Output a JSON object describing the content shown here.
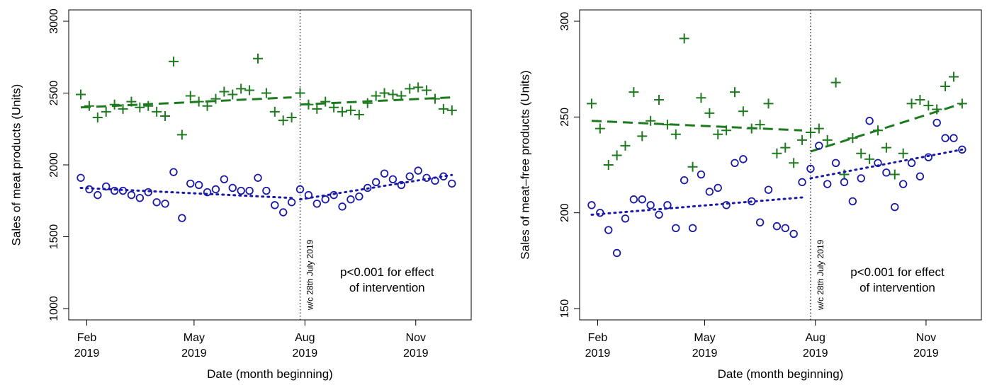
{
  "chart_data": [
    {
      "type": "scatter",
      "ylabel": "Sales of meat products (Units)",
      "xlabel": "Date (month beginning)",
      "ylim": [
        1000,
        3000
      ],
      "yticks": [
        "1000",
        "1500",
        "2000",
        "2500",
        "3000"
      ],
      "xticks": [
        {
          "date": "2019-02-01",
          "month": "Feb",
          "year": "2019"
        },
        {
          "date": "2019-05-01",
          "month": "May",
          "year": "2019"
        },
        {
          "date": "2019-08-01",
          "month": "Aug",
          "year": "2019"
        },
        {
          "date": "2019-11-01",
          "month": "Nov",
          "year": "2019"
        }
      ],
      "xlim": [
        "2019-01-17",
        "2019-12-17"
      ],
      "intervention": {
        "date": "2019-07-28",
        "label": "w/c 28th July 2019"
      },
      "annotation": [
        "p<0.001 for effect",
        "of intervention"
      ],
      "series": [
        {
          "marker": "plus",
          "color": "#1e7a1e",
          "points": [
            [
              "2019-01-27",
              2490
            ],
            [
              "2019-02-03",
              2410
            ],
            [
              "2019-02-10",
              2330
            ],
            [
              "2019-02-17",
              2370
            ],
            [
              "2019-02-24",
              2420
            ],
            [
              "2019-03-03",
              2390
            ],
            [
              "2019-03-10",
              2440
            ],
            [
              "2019-03-17",
              2400
            ],
            [
              "2019-03-24",
              2410
            ],
            [
              "2019-03-31",
              2370
            ],
            [
              "2019-04-07",
              2340
            ],
            [
              "2019-04-14",
              2720
            ],
            [
              "2019-04-21",
              2210
            ],
            [
              "2019-04-28",
              2480
            ],
            [
              "2019-05-05",
              2440
            ],
            [
              "2019-05-12",
              2410
            ],
            [
              "2019-05-19",
              2460
            ],
            [
              "2019-05-26",
              2510
            ],
            [
              "2019-06-02",
              2490
            ],
            [
              "2019-06-09",
              2530
            ],
            [
              "2019-06-16",
              2520
            ],
            [
              "2019-06-23",
              2740
            ],
            [
              "2019-06-30",
              2500
            ],
            [
              "2019-07-07",
              2370
            ],
            [
              "2019-07-14",
              2310
            ],
            [
              "2019-07-21",
              2330
            ],
            [
              "2019-07-28",
              2500
            ],
            [
              "2019-08-04",
              2420
            ],
            [
              "2019-08-11",
              2390
            ],
            [
              "2019-08-18",
              2440
            ],
            [
              "2019-08-25",
              2400
            ],
            [
              "2019-09-01",
              2370
            ],
            [
              "2019-09-08",
              2380
            ],
            [
              "2019-09-15",
              2350
            ],
            [
              "2019-09-22",
              2430
            ],
            [
              "2019-09-29",
              2480
            ],
            [
              "2019-10-06",
              2500
            ],
            [
              "2019-10-13",
              2490
            ],
            [
              "2019-10-20",
              2480
            ],
            [
              "2019-10-27",
              2530
            ],
            [
              "2019-11-03",
              2540
            ],
            [
              "2019-11-10",
              2520
            ],
            [
              "2019-11-17",
              2460
            ],
            [
              "2019-11-24",
              2390
            ],
            [
              "2019-12-01",
              2380
            ]
          ],
          "trend": [
            [
              [
                "2019-01-27",
                2400
              ],
              [
                "2019-07-21",
                2470
              ]
            ],
            [
              [
                "2019-07-28",
                2420
              ],
              [
                "2019-12-01",
                2470
              ]
            ]
          ],
          "trend_style": "dashed"
        },
        {
          "marker": "circle",
          "color": "#1a1aa8",
          "points": [
            [
              "2019-01-27",
              1910
            ],
            [
              "2019-02-03",
              1830
            ],
            [
              "2019-02-10",
              1790
            ],
            [
              "2019-02-17",
              1850
            ],
            [
              "2019-02-24",
              1820
            ],
            [
              "2019-03-03",
              1820
            ],
            [
              "2019-03-10",
              1790
            ],
            [
              "2019-03-17",
              1770
            ],
            [
              "2019-03-24",
              1810
            ],
            [
              "2019-03-31",
              1740
            ],
            [
              "2019-04-07",
              1730
            ],
            [
              "2019-04-14",
              1950
            ],
            [
              "2019-04-21",
              1630
            ],
            [
              "2019-04-28",
              1870
            ],
            [
              "2019-05-05",
              1860
            ],
            [
              "2019-05-12",
              1810
            ],
            [
              "2019-05-19",
              1830
            ],
            [
              "2019-05-26",
              1900
            ],
            [
              "2019-06-02",
              1840
            ],
            [
              "2019-06-09",
              1820
            ],
            [
              "2019-06-16",
              1820
            ],
            [
              "2019-06-23",
              1910
            ],
            [
              "2019-06-30",
              1820
            ],
            [
              "2019-07-07",
              1720
            ],
            [
              "2019-07-14",
              1670
            ],
            [
              "2019-07-21",
              1740
            ],
            [
              "2019-07-28",
              1830
            ],
            [
              "2019-08-04",
              1790
            ],
            [
              "2019-08-11",
              1730
            ],
            [
              "2019-08-18",
              1760
            ],
            [
              "2019-08-25",
              1790
            ],
            [
              "2019-09-01",
              1710
            ],
            [
              "2019-09-08",
              1760
            ],
            [
              "2019-09-15",
              1780
            ],
            [
              "2019-09-22",
              1840
            ],
            [
              "2019-09-29",
              1880
            ],
            [
              "2019-10-06",
              1940
            ],
            [
              "2019-10-13",
              1900
            ],
            [
              "2019-10-20",
              1860
            ],
            [
              "2019-10-27",
              1920
            ],
            [
              "2019-11-03",
              1960
            ],
            [
              "2019-11-10",
              1910
            ],
            [
              "2019-11-17",
              1890
            ],
            [
              "2019-11-24",
              1920
            ],
            [
              "2019-12-01",
              1870
            ]
          ],
          "trend": [
            [
              [
                "2019-01-27",
                1840
              ],
              [
                "2019-07-21",
                1770
              ]
            ],
            [
              [
                "2019-07-28",
                1760
              ],
              [
                "2019-12-01",
                1930
              ]
            ]
          ],
          "trend_style": "dotted"
        }
      ]
    },
    {
      "type": "scatter",
      "ylabel": "Sales of meat–free products (Units)",
      "xlabel": "Date (month beginning)",
      "ylim": [
        150,
        300
      ],
      "yticks": [
        "150",
        "200",
        "250",
        "300"
      ],
      "xticks": [
        {
          "date": "2019-02-01",
          "month": "Feb",
          "year": "2019"
        },
        {
          "date": "2019-05-01",
          "month": "May",
          "year": "2019"
        },
        {
          "date": "2019-08-01",
          "month": "Aug",
          "year": "2019"
        },
        {
          "date": "2019-11-01",
          "month": "Nov",
          "year": "2019"
        }
      ],
      "xlim": [
        "2019-01-17",
        "2019-12-17"
      ],
      "intervention": {
        "date": "2019-07-28",
        "label": "w/c 28th July 2019"
      },
      "annotation": [
        "p<0.001 for effect",
        "of intervention"
      ],
      "series": [
        {
          "marker": "plus",
          "color": "#1e7a1e",
          "points": [
            [
              "2019-01-27",
              257
            ],
            [
              "2019-02-03",
              244
            ],
            [
              "2019-02-10",
              225
            ],
            [
              "2019-02-17",
              230
            ],
            [
              "2019-02-24",
              235
            ],
            [
              "2019-03-03",
              263
            ],
            [
              "2019-03-10",
              240
            ],
            [
              "2019-03-17",
              248
            ],
            [
              "2019-03-24",
              259
            ],
            [
              "2019-03-31",
              246
            ],
            [
              "2019-04-07",
              241
            ],
            [
              "2019-04-14",
              291
            ],
            [
              "2019-04-21",
              224
            ],
            [
              "2019-04-28",
              260
            ],
            [
              "2019-05-05",
              252
            ],
            [
              "2019-05-12",
              241
            ],
            [
              "2019-05-19",
              243
            ],
            [
              "2019-05-26",
              263
            ],
            [
              "2019-06-02",
              253
            ],
            [
              "2019-06-09",
              244
            ],
            [
              "2019-06-16",
              246
            ],
            [
              "2019-06-23",
              257
            ],
            [
              "2019-06-30",
              231
            ],
            [
              "2019-07-07",
              234
            ],
            [
              "2019-07-14",
              226
            ],
            [
              "2019-07-21",
              238
            ],
            [
              "2019-07-28",
              242
            ],
            [
              "2019-08-04",
              244
            ],
            [
              "2019-08-11",
              238
            ],
            [
              "2019-08-18",
              268
            ],
            [
              "2019-08-25",
              220
            ],
            [
              "2019-09-01",
              239
            ],
            [
              "2019-09-08",
              231
            ],
            [
              "2019-09-15",
              228
            ],
            [
              "2019-09-22",
              243
            ],
            [
              "2019-09-29",
              234
            ],
            [
              "2019-10-06",
              220
            ],
            [
              "2019-10-13",
              231
            ],
            [
              "2019-10-20",
              257
            ],
            [
              "2019-10-27",
              259
            ],
            [
              "2019-11-03",
              256
            ],
            [
              "2019-11-10",
              254
            ],
            [
              "2019-11-17",
              266
            ],
            [
              "2019-11-24",
              271
            ],
            [
              "2019-12-01",
              257
            ]
          ],
          "trend": [
            [
              [
                "2019-01-27",
                248
              ],
              [
                "2019-07-21",
                243
              ]
            ],
            [
              [
                "2019-07-28",
                232
              ],
              [
                "2019-12-01",
                257
              ]
            ]
          ],
          "trend_style": "dashed"
        },
        {
          "marker": "circle",
          "color": "#1a1aa8",
          "points": [
            [
              "2019-01-27",
              204
            ],
            [
              "2019-02-03",
              200
            ],
            [
              "2019-02-10",
              191
            ],
            [
              "2019-02-17",
              179
            ],
            [
              "2019-02-24",
              197
            ],
            [
              "2019-03-03",
              207
            ],
            [
              "2019-03-10",
              207
            ],
            [
              "2019-03-17",
              204
            ],
            [
              "2019-03-24",
              199
            ],
            [
              "2019-03-31",
              204
            ],
            [
              "2019-04-07",
              192
            ],
            [
              "2019-04-14",
              217
            ],
            [
              "2019-04-21",
              192
            ],
            [
              "2019-04-28",
              220
            ],
            [
              "2019-05-05",
              211
            ],
            [
              "2019-05-12",
              213
            ],
            [
              "2019-05-19",
              204
            ],
            [
              "2019-05-26",
              226
            ],
            [
              "2019-06-02",
              228
            ],
            [
              "2019-06-09",
              206
            ],
            [
              "2019-06-16",
              195
            ],
            [
              "2019-06-23",
              212
            ],
            [
              "2019-06-30",
              193
            ],
            [
              "2019-07-07",
              192
            ],
            [
              "2019-07-14",
              189
            ],
            [
              "2019-07-21",
              216
            ],
            [
              "2019-07-28",
              223
            ],
            [
              "2019-08-04",
              235
            ],
            [
              "2019-08-11",
              215
            ],
            [
              "2019-08-18",
              226
            ],
            [
              "2019-08-25",
              216
            ],
            [
              "2019-09-01",
              206
            ],
            [
              "2019-09-08",
              218
            ],
            [
              "2019-09-15",
              248
            ],
            [
              "2019-09-22",
              226
            ],
            [
              "2019-09-29",
              221
            ],
            [
              "2019-10-06",
              203
            ],
            [
              "2019-10-13",
              215
            ],
            [
              "2019-10-20",
              226
            ],
            [
              "2019-10-27",
              219
            ],
            [
              "2019-11-03",
              229
            ],
            [
              "2019-11-10",
              247
            ],
            [
              "2019-11-17",
              239
            ],
            [
              "2019-11-24",
              239
            ],
            [
              "2019-12-01",
              233
            ]
          ],
          "trend": [
            [
              [
                "2019-01-27",
                199
              ],
              [
                "2019-07-21",
                208
              ]
            ],
            [
              [
                "2019-07-28",
                218
              ],
              [
                "2019-12-01",
                233
              ]
            ]
          ],
          "trend_style": "dotted"
        }
      ]
    }
  ]
}
